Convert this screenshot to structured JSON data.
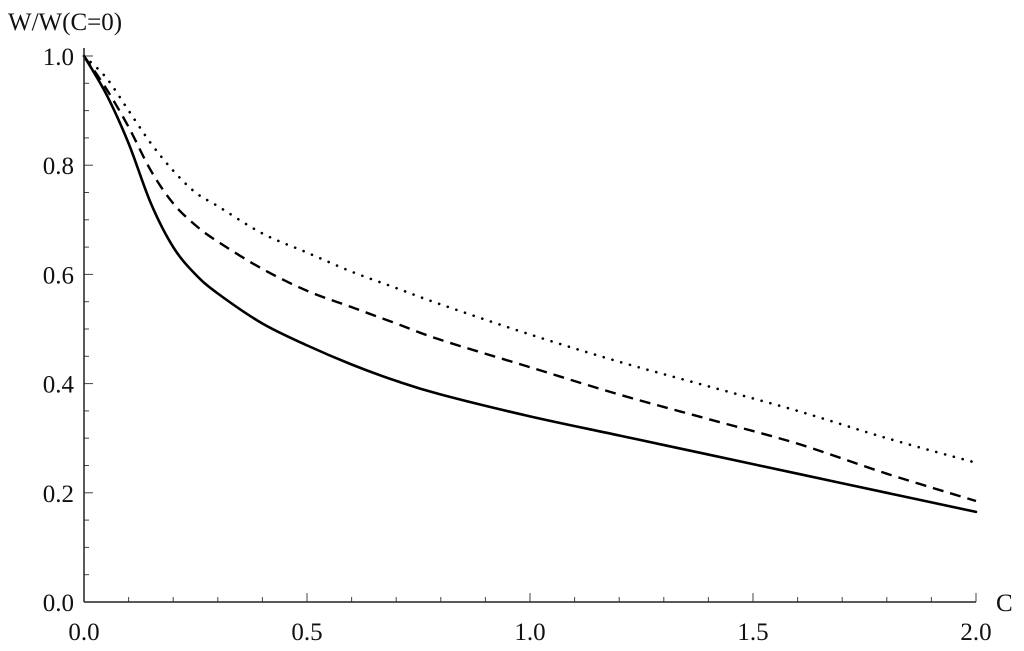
{
  "chart_data": {
    "type": "line",
    "title": "",
    "xlabel": "C",
    "ylabel": "W/W(C=0)",
    "xlim": [
      0.0,
      2.0
    ],
    "ylim": [
      0.0,
      1.0
    ],
    "x_ticks": [
      {
        "value": 0.0,
        "label": "0.0"
      },
      {
        "value": 0.5,
        "label": "0.5"
      },
      {
        "value": 1.0,
        "label": "1.0"
      },
      {
        "value": 1.5,
        "label": "1.5"
      },
      {
        "value": 2.0,
        "label": "2.0"
      }
    ],
    "y_ticks": [
      {
        "value": 0.0,
        "label": "0.0"
      },
      {
        "value": 0.2,
        "label": "0.2"
      },
      {
        "value": 0.4,
        "label": "0.4"
      },
      {
        "value": 0.6,
        "label": "0.6"
      },
      {
        "value": 0.8,
        "label": "0.8"
      },
      {
        "value": 1.0,
        "label": "1.0"
      }
    ],
    "grid": false,
    "legend": "none",
    "series": [
      {
        "style": "solid",
        "color": "#000000",
        "x": [
          0.0,
          0.05,
          0.1,
          0.15,
          0.2,
          0.25,
          0.3,
          0.4,
          0.5,
          0.6,
          0.7,
          0.8,
          1.0,
          1.2,
          1.4,
          1.6,
          1.8,
          2.0
        ],
        "y": [
          1.0,
          0.93,
          0.84,
          0.73,
          0.65,
          0.6,
          0.565,
          0.51,
          0.47,
          0.435,
          0.405,
          0.38,
          0.34,
          0.305,
          0.27,
          0.235,
          0.2,
          0.165
        ]
      },
      {
        "style": "dashed",
        "color": "#000000",
        "x": [
          0.0,
          0.05,
          0.1,
          0.15,
          0.2,
          0.25,
          0.3,
          0.4,
          0.5,
          0.6,
          0.7,
          0.8,
          1.0,
          1.2,
          1.4,
          1.6,
          1.8,
          2.0
        ],
        "y": [
          1.0,
          0.94,
          0.87,
          0.79,
          0.73,
          0.69,
          0.66,
          0.61,
          0.57,
          0.54,
          0.51,
          0.48,
          0.43,
          0.38,
          0.335,
          0.29,
          0.235,
          0.185
        ]
      },
      {
        "style": "dotted",
        "color": "#000000",
        "x": [
          0.0,
          0.05,
          0.1,
          0.15,
          0.2,
          0.25,
          0.3,
          0.4,
          0.5,
          0.6,
          0.7,
          0.8,
          1.0,
          1.2,
          1.4,
          1.6,
          1.8,
          2.0
        ],
        "y": [
          1.0,
          0.96,
          0.9,
          0.84,
          0.79,
          0.75,
          0.725,
          0.675,
          0.64,
          0.605,
          0.575,
          0.545,
          0.49,
          0.44,
          0.395,
          0.35,
          0.3,
          0.255
        ]
      }
    ]
  }
}
